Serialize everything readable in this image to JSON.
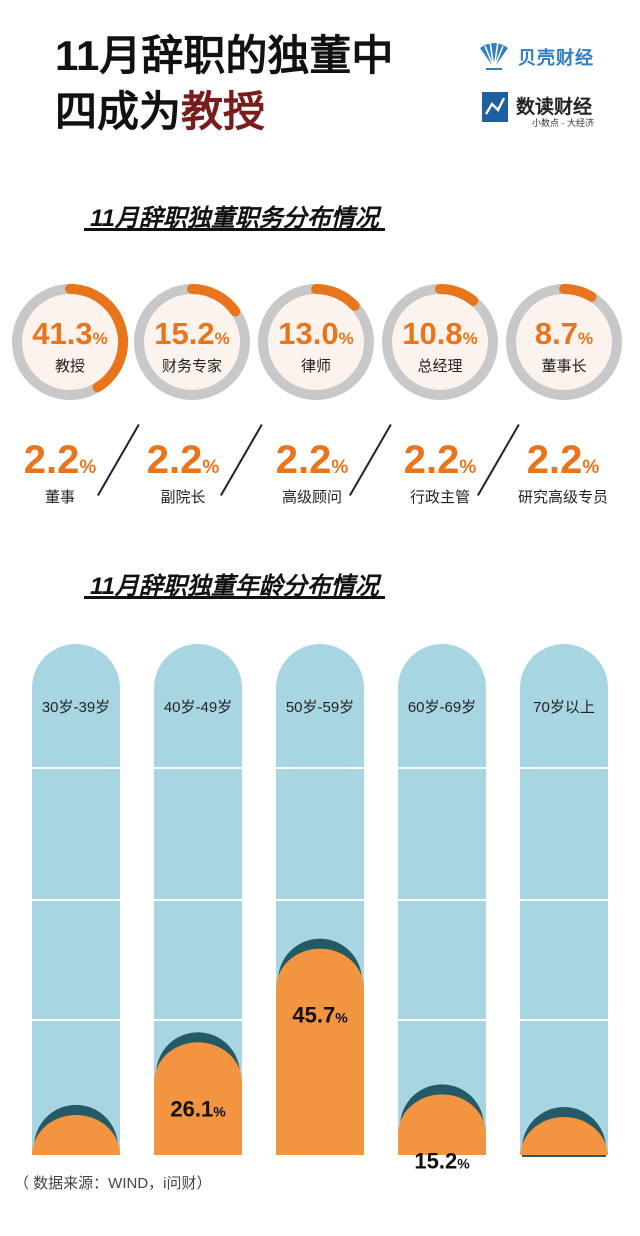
{
  "title": {
    "line1": "11月辞职的独董中",
    "line2_prefix": "四成为",
    "line2_highlight": "教授"
  },
  "brand1": {
    "name": "贝壳财经",
    "icon": "shell-logo-icon",
    "color": "#2f7fc1"
  },
  "brand2": {
    "name": "数读财经",
    "slogan": "小数点 · 大经济",
    "icon": "data-read-logo-icon"
  },
  "colors": {
    "accent": "#e8741c",
    "ring_track": "#c8c8c8",
    "bar_bg": "#a8d5e2",
    "bar_fill": "#f29440",
    "bar_cap": "#245a66",
    "title_highlight": "#7a1c1c"
  },
  "chart_data": [
    {
      "type": "pie",
      "title": "11月辞职独董职务分布情况",
      "unit": "%",
      "items": [
        {
          "label": "教授",
          "value": 41.3
        },
        {
          "label": "财务专家",
          "value": 15.2
        },
        {
          "label": "律师",
          "value": 13.0
        },
        {
          "label": "总经理",
          "value": 10.8
        },
        {
          "label": "董事长",
          "value": 8.7
        },
        {
          "label": "董事",
          "value": 2.2
        },
        {
          "label": "副院长",
          "value": 2.2
        },
        {
          "label": "高级顾问",
          "value": 2.2
        },
        {
          "label": "行政主管",
          "value": 2.2
        },
        {
          "label": "研究高级专员",
          "value": 2.2
        }
      ]
    },
    {
      "type": "bar",
      "title": "11月辞职独董年龄分布情况",
      "unit": "%",
      "categories": [
        "30岁-39岁",
        "40岁-49岁",
        "50岁-59岁",
        "60岁-69岁",
        "70岁以上"
      ],
      "values": [
        10.9,
        26.1,
        45.7,
        15.2,
        2.1
      ],
      "ylim": [
        0,
        100
      ],
      "grid": true
    }
  ],
  "rings_display": [
    "41.3",
    "15.2",
    "13.0",
    "10.8",
    "8.7"
  ],
  "small_display": [
    "2.2",
    "2.2",
    "2.2",
    "2.2",
    "2.2"
  ],
  "bars_display": [
    "10.9",
    "26.1",
    "45.7",
    "15.2",
    "2.1"
  ],
  "unit_symbol": "%",
  "footnote": "（ 数据来源：WIND，i问财）"
}
